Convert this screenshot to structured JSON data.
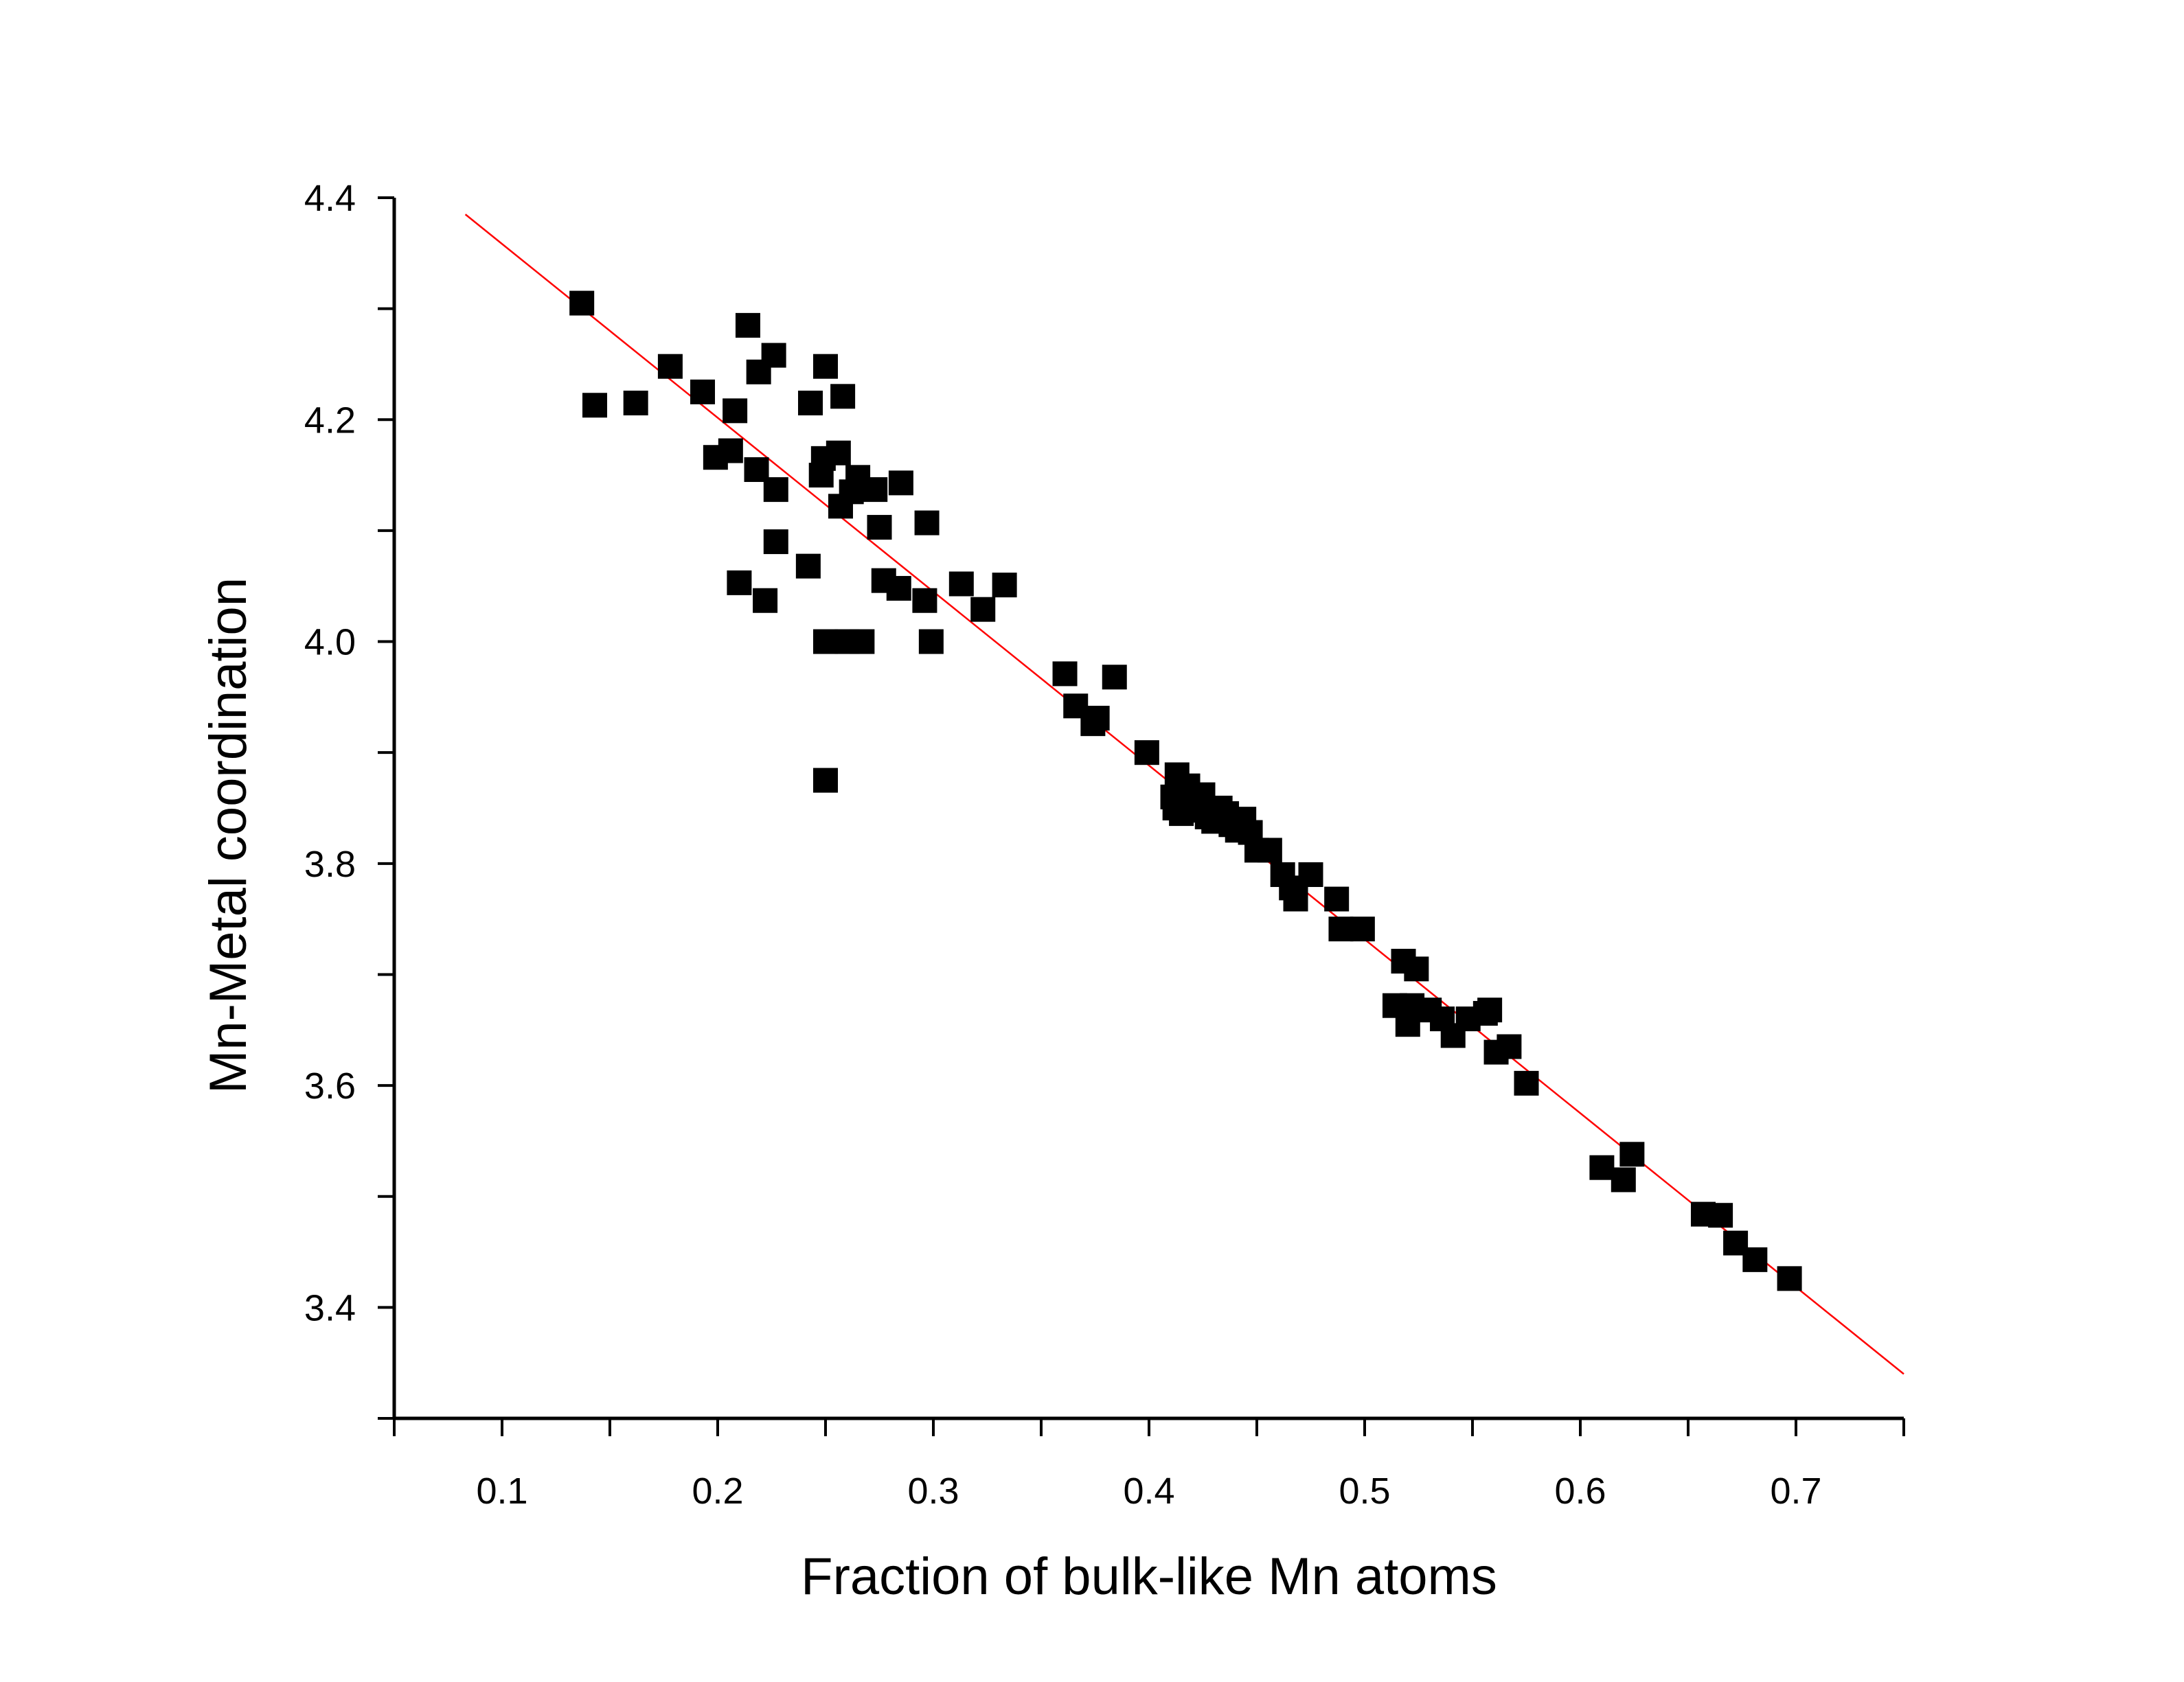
{
  "chart_data": {
    "type": "scatter",
    "title": "",
    "xlabel": "Fraction of bulk-like Mn atoms",
    "ylabel": "Mn-Metal coordination",
    "xlim": [
      0.05,
      0.75
    ],
    "ylim": [
      3.3,
      4.4
    ],
    "x_major_ticks": [
      0.1,
      0.2,
      0.3,
      0.4,
      0.5,
      0.6,
      0.7
    ],
    "x_tick_labels": [
      "0.1",
      "0.2",
      "0.3",
      "0.4",
      "0.5",
      "0.6",
      "0.7"
    ],
    "y_major_ticks": [
      3.4,
      3.6,
      3.8,
      4.0,
      4.2,
      4.4
    ],
    "y_tick_labels": [
      "3.4",
      "3.6",
      "3.8",
      "4.0",
      "4.2",
      "4.4"
    ],
    "marker": "square",
    "marker_color": "#000000",
    "fit_line_color": "#ff0000",
    "grid": false,
    "legend": "none",
    "fit_line": [
      [
        0.083,
        4.385
      ],
      [
        0.75,
        3.34
      ]
    ],
    "points": [
      [
        0.137,
        4.305
      ],
      [
        0.143,
        4.213
      ],
      [
        0.162,
        4.215
      ],
      [
        0.178,
        4.248
      ],
      [
        0.193,
        4.225
      ],
      [
        0.199,
        4.166
      ],
      [
        0.206,
        4.172
      ],
      [
        0.208,
        4.208
      ],
      [
        0.21,
        4.053
      ],
      [
        0.214,
        4.285
      ],
      [
        0.218,
        4.155
      ],
      [
        0.219,
        4.243
      ],
      [
        0.222,
        4.037
      ],
      [
        0.226,
        4.258
      ],
      [
        0.227,
        4.137
      ],
      [
        0.227,
        4.09
      ],
      [
        0.242,
        4.068
      ],
      [
        0.243,
        4.215
      ],
      [
        0.248,
        4.15
      ],
      [
        0.249,
        4.165
      ],
      [
        0.25,
        4.248
      ],
      [
        0.25,
        4.0
      ],
      [
        0.25,
        3.875
      ],
      [
        0.256,
        4.17
      ],
      [
        0.257,
        4.122
      ],
      [
        0.258,
        4.221
      ],
      [
        0.26,
        4.0
      ],
      [
        0.262,
        4.135
      ],
      [
        0.265,
        4.148
      ],
      [
        0.267,
        4.0
      ],
      [
        0.273,
        4.137
      ],
      [
        0.275,
        4.103
      ],
      [
        0.277,
        4.055
      ],
      [
        0.284,
        4.048
      ],
      [
        0.285,
        4.143
      ],
      [
        0.296,
        4.037
      ],
      [
        0.297,
        4.107
      ],
      [
        0.299,
        4.0
      ],
      [
        0.313,
        4.052
      ],
      [
        0.323,
        4.029
      ],
      [
        0.333,
        4.051
      ],
      [
        0.361,
        3.971
      ],
      [
        0.366,
        3.942
      ],
      [
        0.374,
        3.926
      ],
      [
        0.376,
        3.931
      ],
      [
        0.384,
        3.968
      ],
      [
        0.399,
        3.9
      ],
      [
        0.411,
        3.86
      ],
      [
        0.412,
        3.85
      ],
      [
        0.413,
        3.88
      ],
      [
        0.415,
        3.845
      ],
      [
        0.418,
        3.87
      ],
      [
        0.42,
        3.855
      ],
      [
        0.422,
        3.848
      ],
      [
        0.425,
        3.862
      ],
      [
        0.427,
        3.842
      ],
      [
        0.43,
        3.838
      ],
      [
        0.433,
        3.85
      ],
      [
        0.436,
        3.845
      ],
      [
        0.438,
        3.835
      ],
      [
        0.441,
        3.83
      ],
      [
        0.444,
        3.84
      ],
      [
        0.447,
        3.828
      ],
      [
        0.45,
        3.812
      ],
      [
        0.456,
        3.812
      ],
      [
        0.462,
        3.79
      ],
      [
        0.466,
        3.778
      ],
      [
        0.468,
        3.768
      ],
      [
        0.475,
        3.79
      ],
      [
        0.487,
        3.768
      ],
      [
        0.489,
        3.741
      ],
      [
        0.499,
        3.741
      ],
      [
        0.514,
        3.672
      ],
      [
        0.518,
        3.712
      ],
      [
        0.52,
        3.655
      ],
      [
        0.522,
        3.672
      ],
      [
        0.524,
        3.705
      ],
      [
        0.53,
        3.668
      ],
      [
        0.536,
        3.66
      ],
      [
        0.541,
        3.645
      ],
      [
        0.548,
        3.66
      ],
      [
        0.556,
        3.665
      ],
      [
        0.558,
        3.668
      ],
      [
        0.561,
        3.63
      ],
      [
        0.567,
        3.635
      ],
      [
        0.575,
        3.602
      ],
      [
        0.61,
        3.526
      ],
      [
        0.62,
        3.515
      ],
      [
        0.624,
        3.538
      ],
      [
        0.657,
        3.484
      ],
      [
        0.665,
        3.483
      ],
      [
        0.672,
        3.458
      ],
      [
        0.681,
        3.443
      ],
      [
        0.697,
        3.426
      ]
    ]
  }
}
